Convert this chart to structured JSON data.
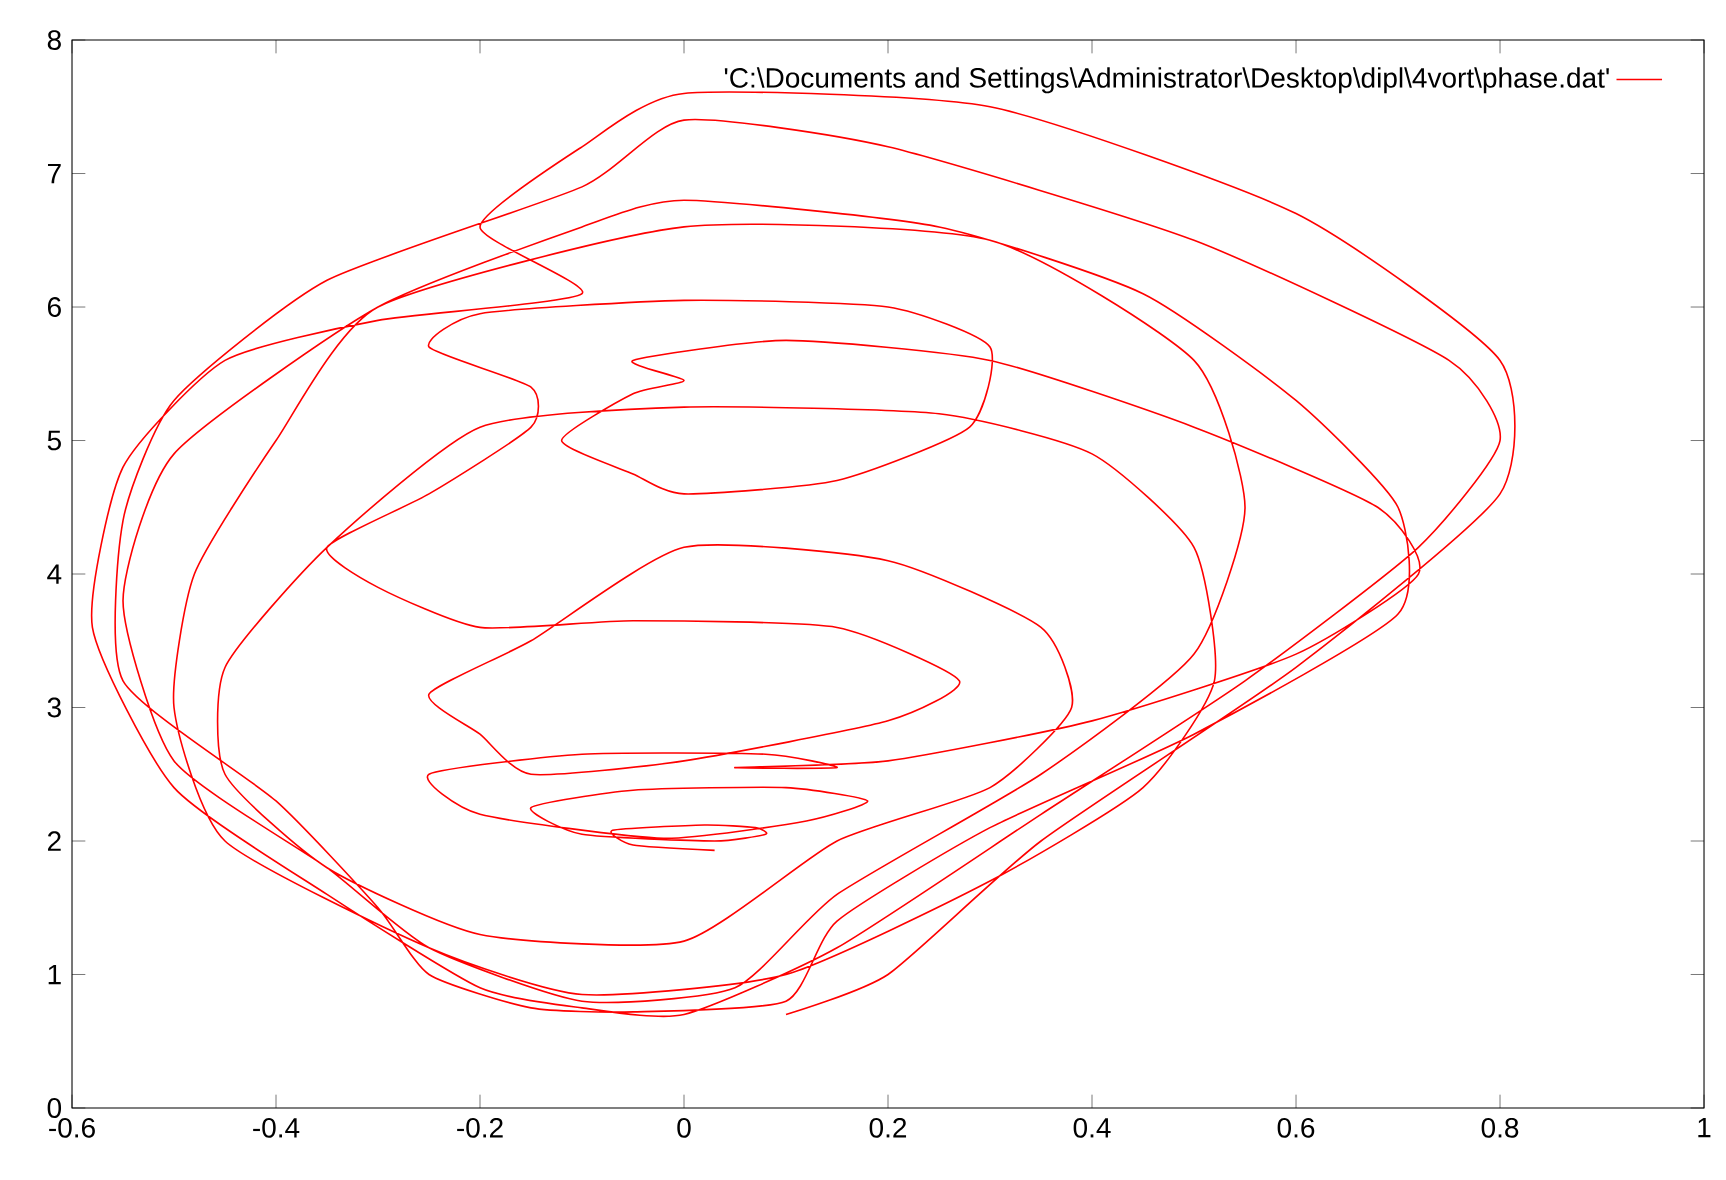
{
  "chart_data": {
    "type": "line",
    "legend": "top right",
    "xlim": [
      -0.6,
      1
    ],
    "ylim": [
      0,
      8
    ],
    "xticks": [
      -0.6,
      -0.4,
      -0.2,
      0,
      0.2,
      0.4,
      0.6,
      0.8,
      1
    ],
    "yticks": [
      0,
      1,
      2,
      3,
      4,
      5,
      6,
      7,
      8
    ],
    "x": [
      0.03,
      -0.05,
      -0.07,
      0.02,
      0.07,
      0.08,
      0.03,
      -0.1,
      -0.15,
      -0.05,
      0.1,
      0.18,
      0.12,
      -0.02,
      -0.2,
      -0.25,
      -0.1,
      0.08,
      0.15,
      0.05,
      0.2,
      0.4,
      0.6,
      0.72,
      0.68,
      0.5,
      0.3,
      0.1,
      -0.05,
      0,
      -0.05,
      -0.12,
      -0.05,
      0,
      0.15,
      0.28,
      0.3,
      0.2,
      0,
      -0.2,
      -0.25,
      -0.15,
      -0.15,
      -0.25,
      -0.35,
      -0.3,
      -0.2,
      -0.05,
      0.15,
      0.27,
      0.2,
      0,
      -0.15,
      -0.2,
      -0.25,
      -0.15,
      0,
      0.2,
      0.35,
      0.38,
      0.3,
      0.15,
      0,
      -0.2,
      -0.35,
      -0.45,
      -0.45,
      -0.35,
      -0.2,
      0,
      0.25,
      0.4,
      0.5,
      0.52,
      0.45,
      0.3,
      0.1,
      -0.1,
      -0.25,
      -0.45,
      -0.5,
      -0.48,
      -0.4,
      -0.3,
      0,
      0.3,
      0.5,
      0.55,
      0.5,
      0.35,
      0.15,
      0.05,
      -0.1,
      -0.25,
      -0.35,
      -0.5,
      -0.55,
      -0.5,
      -0.3,
      -0.1,
      0,
      0.25,
      0.45,
      0.6,
      0.7,
      0.7,
      0.5,
      0.3,
      0.15,
      0.1,
      -0.05,
      -0.15,
      -0.25,
      -0.3,
      -0.4,
      -0.55,
      -0.55,
      -0.5,
      -0.35,
      -0.1,
      0,
      0.2,
      0.5,
      0.75,
      0.8,
      0.72,
      0.55,
      0.35,
      0.15,
      0,
      -0.1,
      -0.2,
      -0.35,
      -0.5,
      -0.58,
      -0.55,
      -0.45,
      -0.3,
      -0.1,
      -0.2,
      -0.1,
      0,
      0.3,
      0.6,
      0.8,
      0.8,
      0.6,
      0.35,
      0.2,
      0.1
    ],
    "series": [
      {
        "name": "'C:\\Documents and Settings\\Administrator\\Desktop\\dipl\\4vort\\phase.dat'",
        "color": "#ff0000",
        "values": [
          1.93,
          1.97,
          2.08,
          2.12,
          2.1,
          2.05,
          2.0,
          2.05,
          2.25,
          2.38,
          2.4,
          2.3,
          2.15,
          2.02,
          2.2,
          2.5,
          2.65,
          2.65,
          2.55,
          2.55,
          2.6,
          2.9,
          3.4,
          4.0,
          4.5,
          5.1,
          5.6,
          5.75,
          5.6,
          5.45,
          5.35,
          5.0,
          4.75,
          4.6,
          4.7,
          5.1,
          5.7,
          6.0,
          6.05,
          5.95,
          5.7,
          5.4,
          5.1,
          4.6,
          4.2,
          3.9,
          3.6,
          3.65,
          3.6,
          3.2,
          2.9,
          2.6,
          2.5,
          2.8,
          3.1,
          3.5,
          4.2,
          4.1,
          3.6,
          3.0,
          2.4,
          2.0,
          1.25,
          1.3,
          1.8,
          2.5,
          3.3,
          4.2,
          5.1,
          5.25,
          5.2,
          4.9,
          4.2,
          3.2,
          2.4,
          1.7,
          1.0,
          0.85,
          1.2,
          2.0,
          3.0,
          4.0,
          5.0,
          6.0,
          6.6,
          6.5,
          5.6,
          4.5,
          3.4,
          2.5,
          1.6,
          0.9,
          0.8,
          1.2,
          1.8,
          2.6,
          3.8,
          4.9,
          6.0,
          6.6,
          6.8,
          6.6,
          6.1,
          5.3,
          4.5,
          3.7,
          2.8,
          2.1,
          1.4,
          0.8,
          0.72,
          0.75,
          1.0,
          1.5,
          2.3,
          3.2,
          4.4,
          5.3,
          6.2,
          6.9,
          7.4,
          7.2,
          6.5,
          5.6,
          5.0,
          4.2,
          3.2,
          2.2,
          1.2,
          0.7,
          0.75,
          0.9,
          1.6,
          2.4,
          3.6,
          4.8,
          5.6,
          5.9,
          6.1,
          6.6,
          7.2,
          7.6,
          7.5,
          6.7,
          5.6,
          4.6,
          3.3,
          2.0,
          1.0,
          0.7
        ]
      }
    ]
  }
}
